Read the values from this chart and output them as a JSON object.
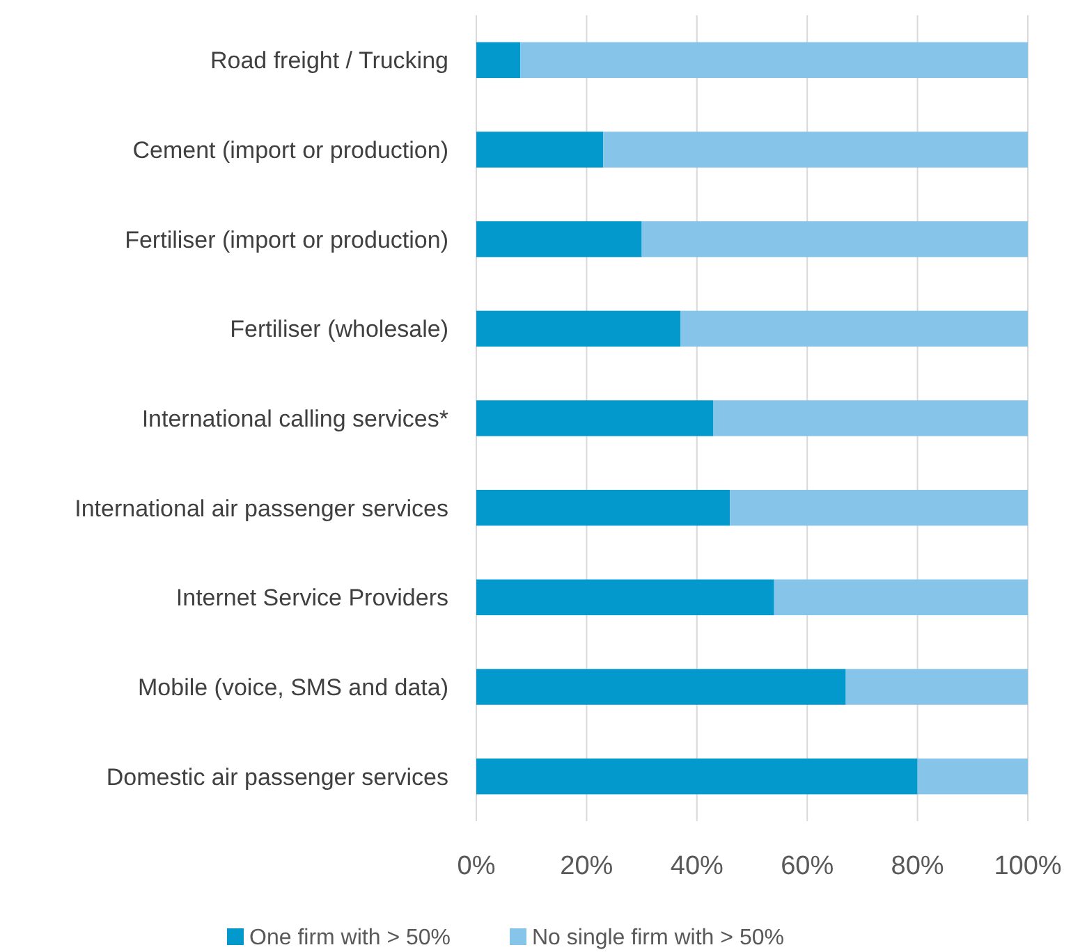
{
  "chart_data": {
    "type": "bar",
    "orientation": "horizontal",
    "stacked": true,
    "categories": [
      "Road freight / Trucking",
      "Cement (import or production)",
      "Fertiliser (import or production)",
      "Fertiliser (wholesale)",
      "International calling services*",
      "International air passenger services",
      "Internet Service Providers",
      "Mobile (voice, SMS and data)",
      "Domestic air passenger services"
    ],
    "series": [
      {
        "name": "One firm with > 50%",
        "color": "#0399cc",
        "values": [
          8,
          23,
          30,
          37,
          43,
          46,
          54,
          67,
          80
        ]
      },
      {
        "name": "No single firm with > 50%",
        "color": "#86c4ea",
        "values": [
          92,
          77,
          70,
          63,
          57,
          54,
          46,
          33,
          20
        ]
      }
    ],
    "xlim": [
      0,
      100
    ],
    "xticks": [
      {
        "value": 0,
        "label": "0%"
      },
      {
        "value": 20,
        "label": "20%"
      },
      {
        "value": 40,
        "label": "40%"
      },
      {
        "value": 60,
        "label": "60%"
      },
      {
        "value": 80,
        "label": "80%"
      },
      {
        "value": 100,
        "label": "100%"
      }
    ],
    "grid": "x",
    "legend": "bottom"
  }
}
